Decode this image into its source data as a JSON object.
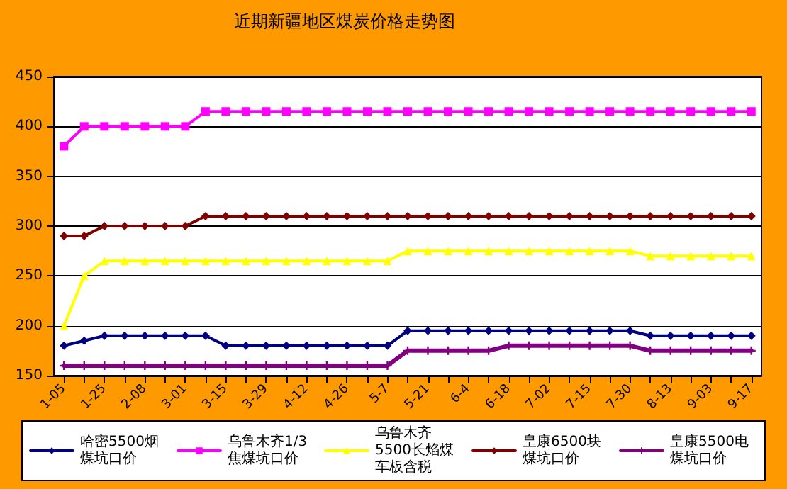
{
  "chart_data": {
    "type": "line",
    "title": "近期新疆地区煤炭价格走势图",
    "categories": [
      "1-05",
      null,
      "1-25",
      null,
      "2-08",
      null,
      "3-01",
      null,
      "3-15",
      null,
      "3-29",
      null,
      "4-12",
      null,
      "4-26",
      null,
      "5-7",
      null,
      "5-21",
      null,
      "6-4",
      null,
      "6-18",
      null,
      "7-02",
      null,
      "7-15",
      null,
      "7-30",
      null,
      "8-13",
      null,
      "9-03",
      null,
      "9-17"
    ],
    "series": [
      {
        "name": "哈密5500烟煤坑口价",
        "color": "#000080",
        "marker": "diamond",
        "values": [
          180,
          185,
          190,
          190,
          190,
          190,
          190,
          190,
          180,
          180,
          180,
          180,
          180,
          180,
          180,
          180,
          180,
          195,
          195,
          195,
          195,
          195,
          195,
          195,
          195,
          195,
          195,
          195,
          195,
          190,
          190,
          190,
          190,
          190,
          190
        ]
      },
      {
        "name": "乌鲁木齐1/3焦煤坑口价",
        "color": "#ff00ff",
        "marker": "square",
        "values": [
          380,
          400,
          400,
          400,
          400,
          400,
          400,
          415,
          415,
          415,
          415,
          415,
          415,
          415,
          415,
          415,
          415,
          415,
          415,
          415,
          415,
          415,
          415,
          415,
          415,
          415,
          415,
          415,
          415,
          415,
          415,
          415,
          415,
          415,
          415
        ]
      },
      {
        "name": "乌鲁木齐5500长焰煤车板含税",
        "color": "#ffff00",
        "marker": "triangle",
        "values": [
          200,
          250,
          265,
          265,
          265,
          265,
          265,
          265,
          265,
          265,
          265,
          265,
          265,
          265,
          265,
          265,
          265,
          275,
          275,
          275,
          275,
          275,
          275,
          275,
          275,
          275,
          275,
          275,
          275,
          270,
          270,
          270,
          270,
          270,
          270
        ]
      },
      {
        "name": "皇康6500块煤坑口价",
        "color": "#800000",
        "marker": "diamond",
        "values": [
          290,
          290,
          300,
          300,
          300,
          300,
          300,
          310,
          310,
          310,
          310,
          310,
          310,
          310,
          310,
          310,
          310,
          310,
          310,
          310,
          310,
          310,
          310,
          310,
          310,
          310,
          310,
          310,
          310,
          310,
          310,
          310,
          310,
          310,
          310
        ]
      },
      {
        "name": "皇康5500电煤坑口价",
        "color": "#800080",
        "marker": "cross",
        "values": [
          160,
          160,
          160,
          160,
          160,
          160,
          160,
          160,
          160,
          160,
          160,
          160,
          160,
          160,
          160,
          160,
          160,
          175,
          175,
          175,
          175,
          175,
          180,
          180,
          180,
          180,
          180,
          180,
          180,
          175,
          175,
          175,
          175,
          175,
          175
        ]
      }
    ],
    "ylim": [
      150,
      450
    ],
    "yticks": [
      150,
      200,
      250,
      300,
      350,
      400,
      450
    ],
    "grid": "y",
    "legend": "bottom"
  }
}
